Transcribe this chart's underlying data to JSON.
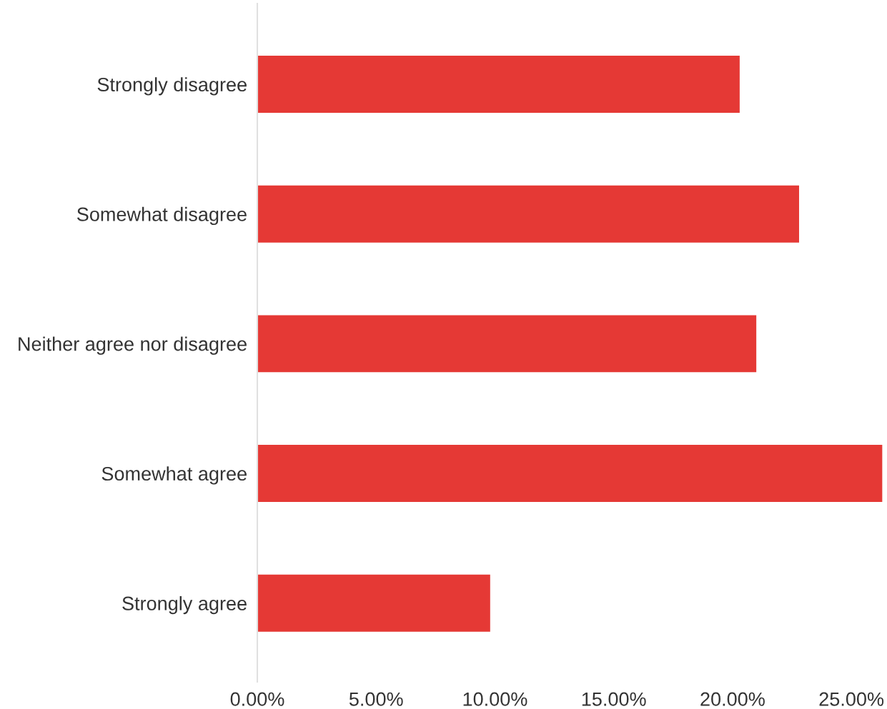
{
  "chart_data": {
    "type": "bar",
    "orientation": "horizontal",
    "categories": [
      "Strongly disagree",
      "Somewhat disagree",
      "Neither agree nor disagree",
      "Somewhat agree",
      "Strongly agree"
    ],
    "values": [
      20.3,
      22.8,
      21.0,
      26.3,
      9.8
    ],
    "color": "#e53935",
    "xlim": [
      0,
      26.5
    ],
    "xticks": [
      {
        "value": 0,
        "label": "0.00%"
      },
      {
        "value": 5,
        "label": "5.00%"
      },
      {
        "value": 10,
        "label": "10.00%"
      },
      {
        "value": 15,
        "label": "15.00%"
      },
      {
        "value": 20,
        "label": "20.00%"
      },
      {
        "value": 25,
        "label": "25.00%"
      }
    ]
  }
}
